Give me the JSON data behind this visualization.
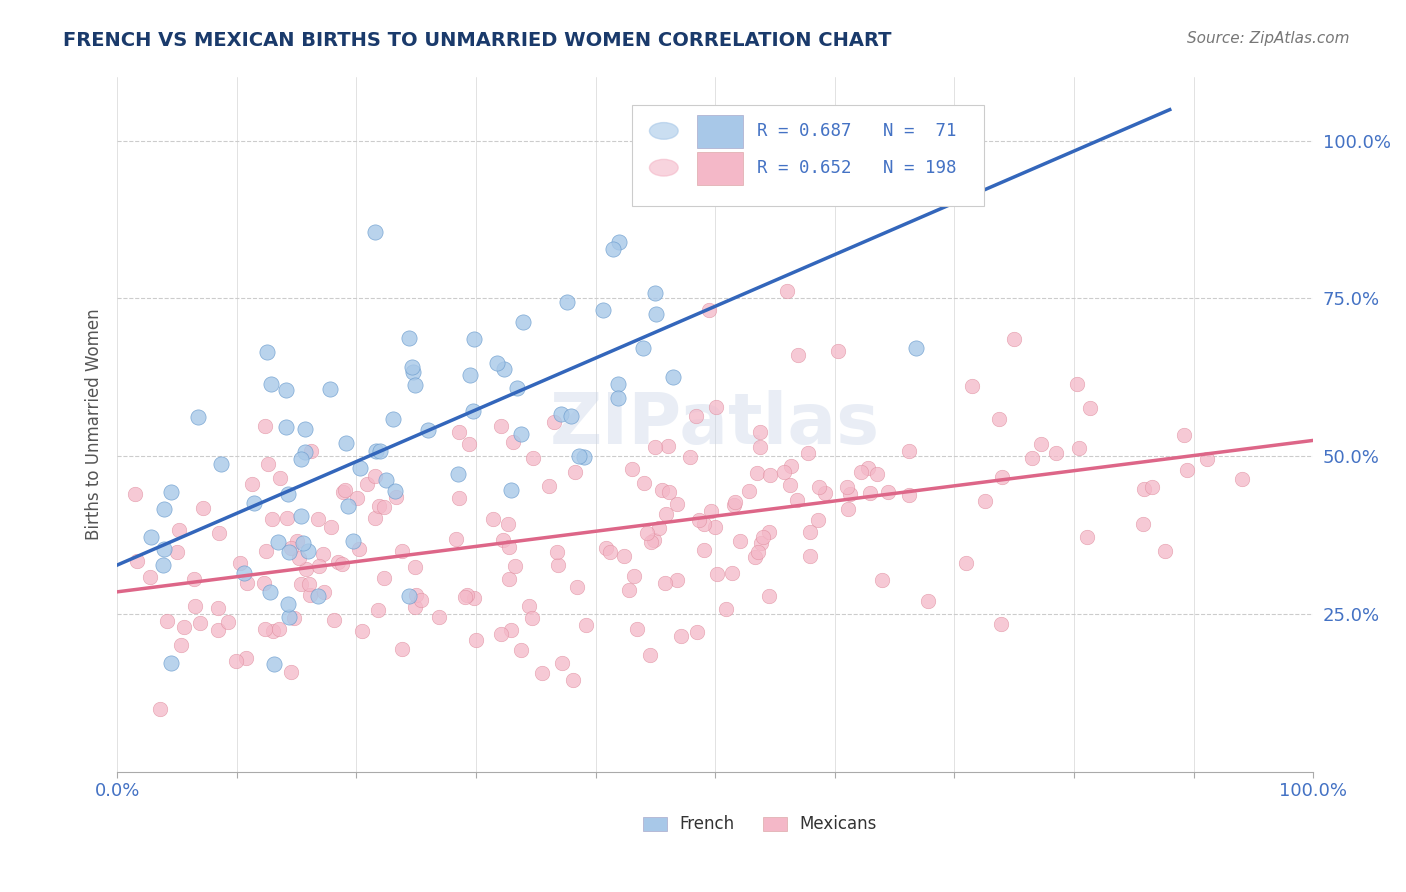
{
  "title": "FRENCH VS MEXICAN BIRTHS TO UNMARRIED WOMEN CORRELATION CHART",
  "source_text": "Source: ZipAtlas.com",
  "ylabel": "Births to Unmarried Women",
  "french_R": 0.687,
  "french_N": 71,
  "mexican_R": 0.652,
  "mexican_N": 198,
  "french_color": "#a8c8e8",
  "french_edge_color": "#6699cc",
  "french_line_color": "#3366bb",
  "mexican_color": "#f4b8c8",
  "mexican_edge_color": "#dd8899",
  "mexican_line_color": "#dd6688",
  "title_color": "#1a3a6b",
  "source_color": "#777777",
  "axis_label_color": "#4472C4",
  "ylabel_color": "#555555",
  "legend_text_color": "#222222",
  "legend_rn_color": "#4472C4",
  "watermark_color": "#c8d4e8",
  "background_color": "#ffffff",
  "grid_color": "#cccccc",
  "legend_label_french": "French",
  "legend_label_mexican": "Mexicans",
  "watermark_text": "ZIPatlas",
  "xlim": [
    0.0,
    1.0
  ],
  "ylim": [
    0.0,
    1.1
  ]
}
